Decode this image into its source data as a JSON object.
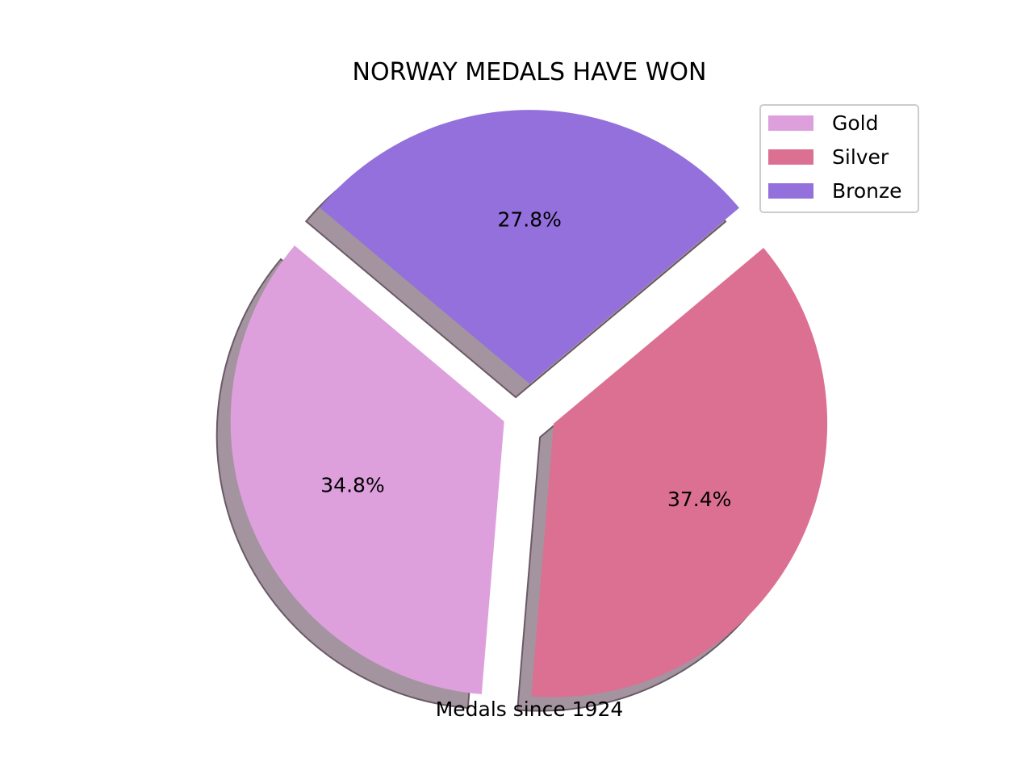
{
  "chart_data": {
    "type": "pie",
    "title": "NORWAY MEDALS HAVE WON",
    "xlabel": "Medals since 1924",
    "slices": [
      {
        "label": "Gold",
        "percent": 34.8,
        "pct_label": "34.8%",
        "color": "#dda0dd"
      },
      {
        "label": "Silver",
        "percent": 37.4,
        "pct_label": "37.4%",
        "color": "#db7093"
      },
      {
        "label": "Bronze",
        "percent": 27.8,
        "pct_label": "27.8%",
        "color": "#9370db"
      }
    ],
    "start_angle_deg": 140,
    "explode": [
      0.1,
      0.1,
      0.1
    ],
    "shadow": true,
    "legend": {
      "placement": "top-right",
      "entries": [
        "Gold",
        "Silver",
        "Bronze"
      ]
    }
  }
}
